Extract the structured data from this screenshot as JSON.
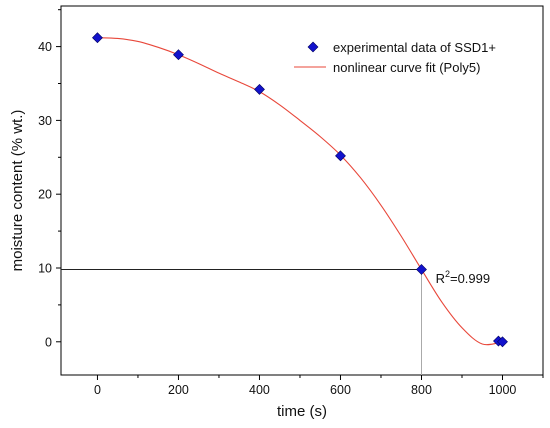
{
  "chart_data": {
    "type": "scatter",
    "title": "",
    "xlabel": "time (s)",
    "ylabel": "moisture content (% wt.)",
    "xlim": [
      -90,
      1100
    ],
    "ylim": [
      -4.5,
      45.5
    ],
    "xticks": [
      0,
      200,
      400,
      600,
      800,
      1000
    ],
    "yticks": [
      0,
      10,
      20,
      30,
      40
    ],
    "grid": false,
    "legend_position": "top-right",
    "series": [
      {
        "name": "experimental data of SSD1+",
        "kind": "scatter",
        "marker": "diamond",
        "color": "#1212cc",
        "x": [
          0,
          200,
          400,
          600,
          800,
          990,
          1000
        ],
        "y": [
          41.2,
          38.9,
          34.2,
          25.2,
          9.8,
          0.1,
          0.0
        ]
      },
      {
        "name": "nonlinear curve fit (Poly5)",
        "kind": "line",
        "color": "#e8473a",
        "x": [
          0,
          50,
          100,
          150,
          200,
          250,
          300,
          350,
          400,
          450,
          500,
          550,
          600,
          650,
          700,
          750,
          800,
          850,
          900,
          950,
          1000
        ],
        "y": [
          41.2,
          41.1,
          40.7,
          39.9,
          38.9,
          37.7,
          36.4,
          35.2,
          33.9,
          32.1,
          30.0,
          27.8,
          25.3,
          22.2,
          18.5,
          14.3,
          9.8,
          5.4,
          1.9,
          -0.3,
          0.0
        ]
      }
    ],
    "annotations": [
      {
        "text": "R",
        "superscript": "2",
        "suffix": "=0.999",
        "x": 820,
        "y": 8.0
      }
    ],
    "reference_lines": [
      {
        "type": "horizontal",
        "y": 9.8,
        "x_from": -90,
        "x_to": 800,
        "color": "#222222"
      },
      {
        "type": "vertical",
        "x": 800,
        "y_from": -4.5,
        "y_to": 9.8,
        "color": "#aaaaaa"
      }
    ]
  }
}
